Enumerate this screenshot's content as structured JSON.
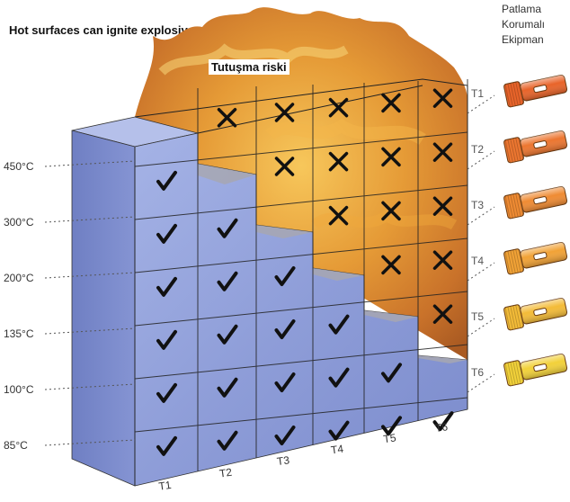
{
  "title": "Hot surfaces can ignite explosive atmospheres",
  "corner_label": [
    "Patlama",
    "Korumalı",
    "Ekipman"
  ],
  "risk_label": "Tutuşma riski",
  "temperatures": [
    "450°C",
    "300°C",
    "200°C",
    "135°C",
    "100°C",
    "85°C"
  ],
  "columns": [
    "T1",
    "T2",
    "T3",
    "T4",
    "T5",
    "T6"
  ],
  "classes": [
    "T1",
    "T2",
    "T3",
    "T4",
    "T5",
    "T6"
  ],
  "safe_cells_per_column": [
    6,
    5,
    4,
    3,
    2,
    1
  ],
  "ignition_marks_per_column": [
    0,
    1,
    2,
    3,
    4,
    5
  ],
  "colors": {
    "safe_block": "#8f9fd6",
    "flame": "#e9a23a",
    "lamp_1": "#e8642a",
    "lamp_6": "#f2d13a"
  },
  "icons": [
    "check-icon",
    "cross-icon",
    "flashlight-icon"
  ]
}
